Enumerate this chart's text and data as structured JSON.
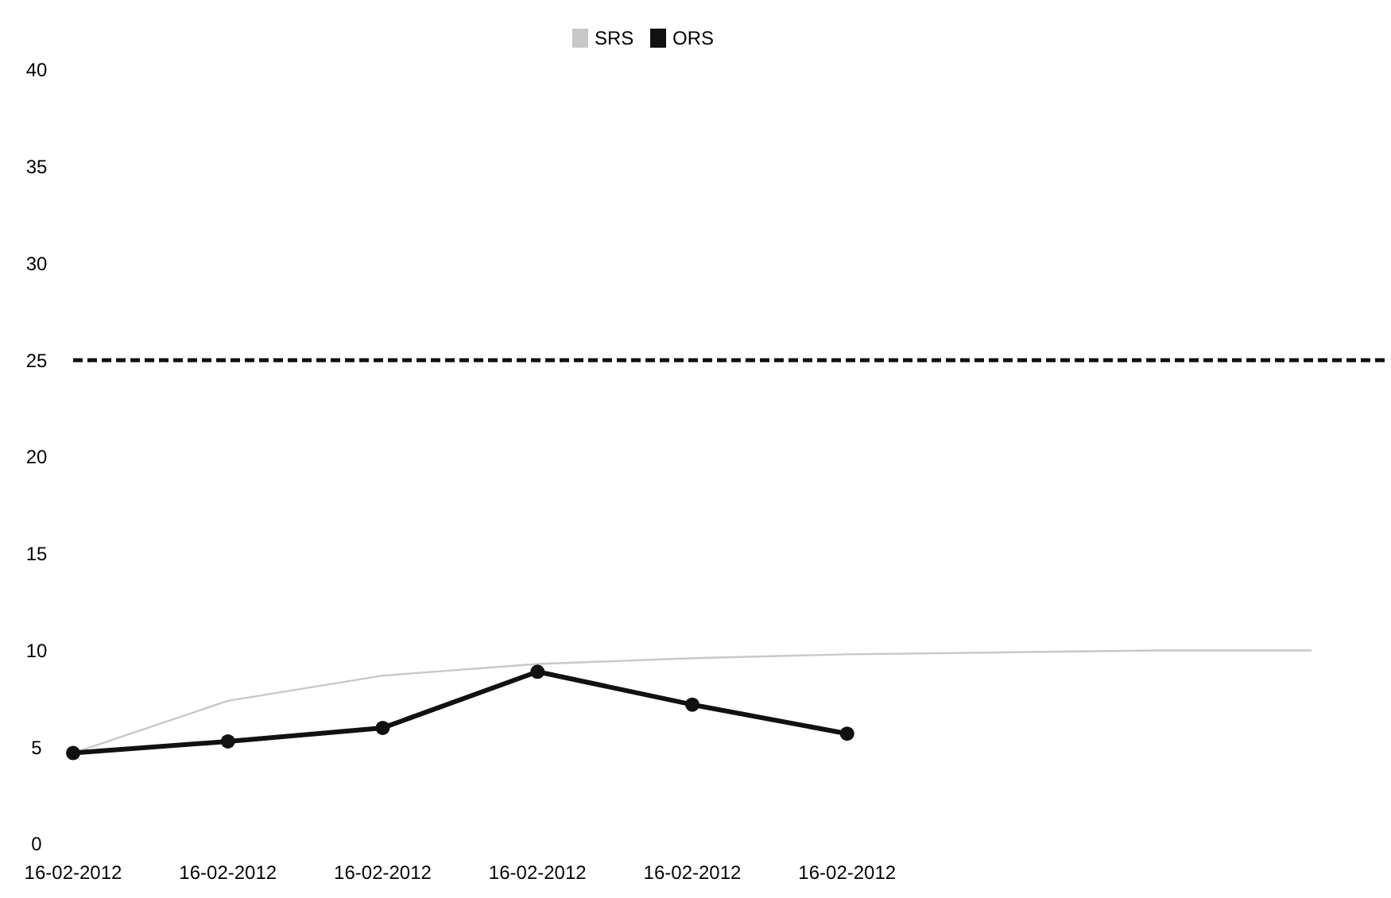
{
  "chart_data": {
    "type": "line",
    "categories": [
      "16-02-2012",
      "16-02-2012",
      "16-02-2012",
      "16-02-2012",
      "16-02-2012",
      "16-02-2012",
      null,
      null,
      null
    ],
    "series": [
      {
        "name": "SRS",
        "color": "#c8c8c8",
        "values": [
          4.7,
          7.4,
          8.7,
          9.3,
          9.6,
          9.8,
          9.9,
          10,
          10
        ],
        "marker": "none"
      },
      {
        "name": "ORS",
        "color": "#111111",
        "values": [
          4.7,
          5.3,
          6,
          8.9,
          7.2,
          5.7,
          null,
          null,
          null
        ],
        "marker": "circle"
      }
    ],
    "ylim": [
      0,
      40
    ],
    "yticks": [
      0,
      5,
      10,
      15,
      20,
      25,
      30,
      35,
      40
    ],
    "grid": false,
    "legend": "top",
    "ref_lines": [
      {
        "axis": "y",
        "value": 25,
        "color": "#111111",
        "line_style": "dashed"
      }
    ]
  }
}
